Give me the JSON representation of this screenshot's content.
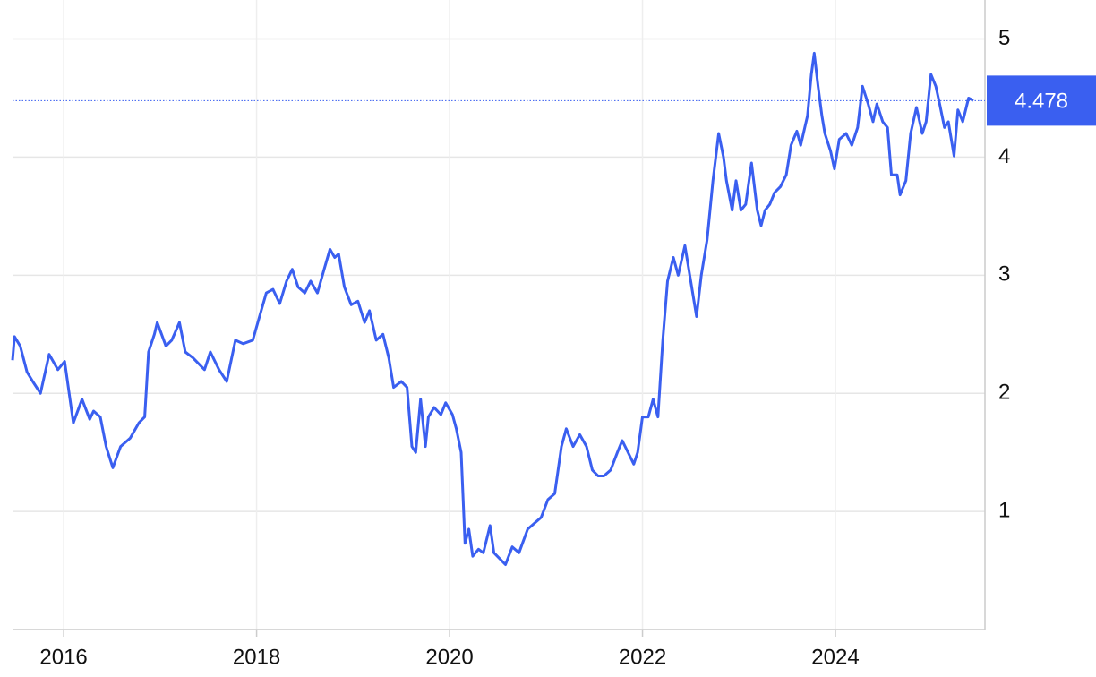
{
  "chart_data": {
    "type": "line",
    "x": [
      2015.47,
      2015.49,
      2015.55,
      2015.62,
      2015.68,
      2015.76,
      2015.85,
      2015.94,
      2016.01,
      2016.1,
      2016.19,
      2016.27,
      2016.31,
      2016.38,
      2016.44,
      2016.51,
      2016.59,
      2016.69,
      2016.78,
      2016.84,
      2016.88,
      2016.94,
      2016.97,
      2017.06,
      2017.12,
      2017.2,
      2017.26,
      2017.34,
      2017.4,
      2017.46,
      2017.52,
      2017.61,
      2017.69,
      2017.78,
      2017.86,
      2017.96,
      2018.03,
      2018.1,
      2018.17,
      2018.24,
      2018.31,
      2018.37,
      2018.43,
      2018.5,
      2018.56,
      2018.63,
      2018.7,
      2018.76,
      2018.81,
      2018.85,
      2018.91,
      2018.98,
      2019.05,
      2019.12,
      2019.17,
      2019.24,
      2019.31,
      2019.37,
      2019.42,
      2019.5,
      2019.56,
      2019.61,
      2019.65,
      2019.7,
      2019.75,
      2019.78,
      2019.84,
      2019.91,
      2019.96,
      2020.03,
      2020.07,
      2020.12,
      2020.16,
      2020.2,
      2020.24,
      2020.3,
      2020.35,
      2020.42,
      2020.46,
      2020.52,
      2020.58,
      2020.65,
      2020.72,
      2020.81,
      2020.88,
      2020.95,
      2021.02,
      2021.09,
      2021.16,
      2021.21,
      2021.28,
      2021.35,
      2021.42,
      2021.48,
      2021.54,
      2021.6,
      2021.67,
      2021.74,
      2021.79,
      2021.85,
      2021.91,
      2021.95,
      2022.0,
      2022.06,
      2022.11,
      2022.16,
      2022.21,
      2022.26,
      2022.32,
      2022.37,
      2022.44,
      2022.5,
      2022.56,
      2022.61,
      2022.67,
      2022.73,
      2022.76,
      2022.79,
      2022.84,
      2022.87,
      2022.93,
      2022.97,
      2023.02,
      2023.07,
      2023.13,
      2023.19,
      2023.23,
      2023.27,
      2023.32,
      2023.37,
      2023.43,
      2023.49,
      2023.54,
      2023.6,
      2023.64,
      2023.71,
      2023.75,
      2023.78,
      2023.82,
      2023.86,
      2023.89,
      2023.95,
      2023.99,
      2024.04,
      2024.11,
      2024.17,
      2024.23,
      2024.28,
      2024.34,
      2024.39,
      2024.43,
      2024.49,
      2024.54,
      2024.58,
      2024.64,
      2024.67,
      2024.73,
      2024.78,
      2024.84,
      2024.9,
      2024.94,
      2024.99,
      2025.04,
      2025.08,
      2025.13,
      2025.17,
      2025.23,
      2025.27,
      2025.32,
      2025.38,
      2025.43
    ],
    "series": [
      {
        "color": "#3a5ff0",
        "values": [
          2.28,
          2.48,
          2.4,
          2.18,
          2.1,
          2.0,
          2.33,
          2.2,
          2.27,
          1.75,
          1.95,
          1.78,
          1.85,
          1.8,
          1.55,
          1.37,
          1.55,
          1.62,
          1.75,
          1.8,
          2.35,
          2.5,
          2.6,
          2.4,
          2.45,
          2.6,
          2.35,
          2.3,
          2.25,
          2.2,
          2.35,
          2.2,
          2.1,
          2.45,
          2.42,
          2.45,
          2.65,
          2.85,
          2.88,
          2.76,
          2.95,
          3.05,
          2.9,
          2.85,
          2.95,
          2.85,
          3.05,
          3.22,
          3.15,
          3.18,
          2.9,
          2.75,
          2.78,
          2.6,
          2.7,
          2.45,
          2.5,
          2.3,
          2.05,
          2.1,
          2.05,
          1.55,
          1.5,
          1.95,
          1.55,
          1.8,
          1.88,
          1.82,
          1.92,
          1.82,
          1.7,
          1.5,
          0.73,
          0.85,
          0.62,
          0.68,
          0.65,
          0.88,
          0.65,
          0.6,
          0.55,
          0.7,
          0.65,
          0.85,
          0.9,
          0.95,
          1.1,
          1.15,
          1.55,
          1.7,
          1.55,
          1.65,
          1.55,
          1.35,
          1.3,
          1.3,
          1.35,
          1.5,
          1.6,
          1.5,
          1.4,
          1.5,
          1.8,
          1.8,
          1.95,
          1.8,
          2.45,
          2.95,
          3.15,
          3.0,
          3.25,
          2.95,
          2.65,
          3.0,
          3.3,
          3.8,
          4.0,
          4.2,
          4.0,
          3.8,
          3.55,
          3.8,
          3.55,
          3.6,
          3.95,
          3.55,
          3.42,
          3.55,
          3.6,
          3.7,
          3.75,
          3.85,
          4.1,
          4.22,
          4.1,
          4.35,
          4.7,
          4.88,
          4.6,
          4.35,
          4.2,
          4.05,
          3.9,
          4.15,
          4.2,
          4.1,
          4.25,
          4.6,
          4.45,
          4.3,
          4.45,
          4.3,
          4.25,
          3.85,
          3.85,
          3.68,
          3.8,
          4.2,
          4.42,
          4.2,
          4.3,
          4.7,
          4.6,
          4.45,
          4.25,
          4.3,
          4.01,
          4.4,
          4.3,
          4.5,
          4.48
        ]
      }
    ],
    "xlim": [
      2015.47,
      2025.55
    ],
    "xticks": [
      2016,
      2018,
      2020,
      2022,
      2024
    ],
    "ylim": [
      0,
      5.33
    ],
    "yticks": [
      1,
      2,
      3,
      4,
      5
    ],
    "grid": true,
    "last_value": 4.478,
    "last_value_color": "#3a5ff0"
  }
}
